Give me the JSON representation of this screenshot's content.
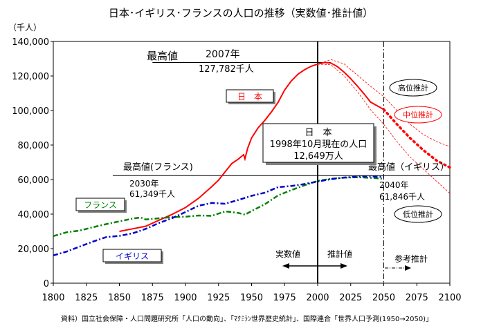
{
  "chart_data": {
    "type": "line",
    "title": "日本･イギリス･フランスの人口の推移（実数値･推計値）",
    "ylabel": "（千人）",
    "xlim": [
      1800,
      2100
    ],
    "ylim": [
      0,
      140000
    ],
    "x_ticks": [
      1800,
      1825,
      1850,
      1875,
      1900,
      1925,
      1950,
      1975,
      2000,
      2025,
      2050,
      2075,
      2100
    ],
    "y_ticks": [
      0,
      20000,
      40000,
      60000,
      80000,
      100000,
      120000,
      140000
    ],
    "y_tick_labels": [
      "0",
      "20,000",
      "40,000",
      "60,000",
      "80,000",
      "100,000",
      "120,000",
      "140,000"
    ],
    "grid": false,
    "source": "資料）国立社会保障・人口問題研究所「人口の動向」、「ﾏｸﾐﾗﾝ世界歴史統計」、国際連合「世界人口予測(1950→2050)」",
    "series": [
      {
        "name": "日　本",
        "color": "#ff0000",
        "style": "solid",
        "points": [
          [
            1850,
            30000
          ],
          [
            1860,
            31500
          ],
          [
            1870,
            33000
          ],
          [
            1880,
            36500
          ],
          [
            1890,
            39900
          ],
          [
            1900,
            43800
          ],
          [
            1910,
            49200
          ],
          [
            1920,
            56000
          ],
          [
            1925,
            59700
          ],
          [
            1930,
            64500
          ],
          [
            1935,
            69300
          ],
          [
            1940,
            71900
          ],
          [
            1943,
            73800
          ],
          [
            1944,
            74400
          ],
          [
            1945,
            72000
          ],
          [
            1947,
            78100
          ],
          [
            1950,
            84100
          ],
          [
            1955,
            90100
          ],
          [
            1960,
            94300
          ],
          [
            1965,
            99200
          ],
          [
            1970,
            104700
          ],
          [
            1975,
            111900
          ],
          [
            1980,
            117100
          ],
          [
            1985,
            121000
          ],
          [
            1990,
            123600
          ],
          [
            1995,
            125600
          ],
          [
            2000,
            126900
          ],
          [
            2005,
            127800
          ],
          [
            2010,
            127500
          ],
          [
            2015,
            125400
          ],
          [
            2020,
            122200
          ],
          [
            2025,
            118400
          ],
          [
            2030,
            114200
          ],
          [
            2035,
            109700
          ],
          [
            2040,
            104900
          ],
          [
            2050,
            100600
          ]
        ]
      },
      {
        "name": "中位推計",
        "color": "#ff0000",
        "style": "dotted-thick",
        "points": [
          [
            2050,
            100600
          ],
          [
            2060,
            92000
          ],
          [
            2070,
            84000
          ],
          [
            2080,
            77000
          ],
          [
            2090,
            71000
          ],
          [
            2100,
            67000
          ]
        ]
      },
      {
        "name": "高位推計",
        "color": "#ff0000",
        "style": "thin-dashed",
        "points": [
          [
            2000,
            126900
          ],
          [
            2010,
            129500
          ],
          [
            2020,
            127000
          ],
          [
            2030,
            120500
          ],
          [
            2040,
            114000
          ],
          [
            2050,
            108000
          ],
          [
            2060,
            100000
          ],
          [
            2070,
            92000
          ],
          [
            2080,
            86000
          ],
          [
            2090,
            82000
          ],
          [
            2100,
            79000
          ]
        ]
      },
      {
        "name": "低位推計",
        "color": "#ff0000",
        "style": "thin-dashed",
        "points": [
          [
            2000,
            126900
          ],
          [
            2010,
            126500
          ],
          [
            2020,
            120000
          ],
          [
            2030,
            111000
          ],
          [
            2040,
            100500
          ],
          [
            2050,
            92000
          ],
          [
            2060,
            82000
          ],
          [
            2070,
            73000
          ],
          [
            2080,
            66000
          ],
          [
            2090,
            59000
          ],
          [
            2100,
            52000
          ]
        ]
      },
      {
        "name": "フランス",
        "color": "#008000",
        "style": "dash-dot",
        "points": [
          [
            1800,
            27300
          ],
          [
            1810,
            29500
          ],
          [
            1820,
            30500
          ],
          [
            1830,
            32400
          ],
          [
            1840,
            34200
          ],
          [
            1850,
            35800
          ],
          [
            1860,
            37400
          ],
          [
            1866,
            38100
          ],
          [
            1870,
            36900
          ],
          [
            1880,
            37600
          ],
          [
            1890,
            38300
          ],
          [
            1900,
            38500
          ],
          [
            1910,
            39200
          ],
          [
            1920,
            39000
          ],
          [
            1930,
            41600
          ],
          [
            1940,
            40700
          ],
          [
            1945,
            39700
          ],
          [
            1950,
            41800
          ],
          [
            1960,
            45700
          ],
          [
            1970,
            50800
          ],
          [
            1980,
            53900
          ],
          [
            1990,
            56700
          ],
          [
            2000,
            59200
          ],
          [
            2010,
            60500
          ],
          [
            2020,
            61100
          ],
          [
            2030,
            61349
          ],
          [
            2040,
            61000
          ],
          [
            2050,
            60500
          ]
        ]
      },
      {
        "name": "イギリス",
        "color": "#0000cc",
        "style": "dash-dot",
        "points": [
          [
            1800,
            16100
          ],
          [
            1810,
            18300
          ],
          [
            1820,
            21200
          ],
          [
            1830,
            24100
          ],
          [
            1840,
            26700
          ],
          [
            1850,
            27400
          ],
          [
            1860,
            28900
          ],
          [
            1870,
            31500
          ],
          [
            1880,
            34900
          ],
          [
            1890,
            37700
          ],
          [
            1900,
            41200
          ],
          [
            1910,
            44900
          ],
          [
            1920,
            46500
          ],
          [
            1930,
            46000
          ],
          [
            1940,
            48200
          ],
          [
            1950,
            50600
          ],
          [
            1960,
            52400
          ],
          [
            1970,
            55600
          ],
          [
            1980,
            56300
          ],
          [
            1990,
            57400
          ],
          [
            2000,
            58900
          ],
          [
            2010,
            60200
          ],
          [
            2020,
            61200
          ],
          [
            2030,
            61700
          ],
          [
            2040,
            61846
          ],
          [
            2050,
            61500
          ]
        ]
      }
    ],
    "legend": {
      "japan": "日　本",
      "france": "フランス",
      "uk": "イギリス",
      "high": "高位推計",
      "mid": "中位推計",
      "low": "低位推計"
    },
    "annotations": {
      "japan_peak_label": "最高値",
      "japan_peak_year": "2007年",
      "japan_peak_value": "127,782千人",
      "france_peak_label": "最高値(フランス)",
      "france_peak_year": "2030年",
      "france_peak_value": "61,349千人",
      "uk_peak_label": "最高値（イギリス）",
      "uk_peak_year": "2040年",
      "uk_peak_value": "61,846千人",
      "box_line1": "日　本",
      "box_line2": "1998年10月現在の人口",
      "box_line3": "12,649万人",
      "actual": "実数値",
      "estimated": "推計値",
      "reference": "参考推計"
    }
  }
}
